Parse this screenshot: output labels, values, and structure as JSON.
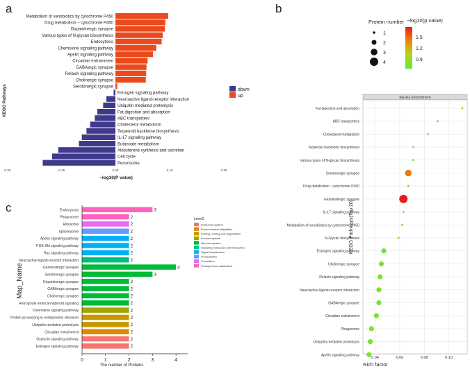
{
  "panel_labels": {
    "a": "a",
    "b": "b",
    "c": "c"
  },
  "colors": {
    "up": "#ec4a1c",
    "down": "#3f3a8c",
    "grid": "#e4e4e4",
    "strip": "#d9d9d9"
  },
  "chart_data": [
    {
      "id": "a",
      "type": "bar",
      "orientation": "horizontal",
      "xlabel": "−log10(P value)",
      "ylabel": "KEGG Pathways",
      "xlim": [
        -0.3,
        0.3
      ],
      "xticks": [
        "-0.30",
        "-0.15",
        "0.00",
        "0.15",
        "0.30"
      ],
      "legend": [
        {
          "name": "down",
          "color": "#3f3a8c"
        },
        {
          "name": "up",
          "color": "#ec4a1c"
        }
      ],
      "categories": [
        "Metabolism of xenobiotics by cytochrome P450",
        "Drug metabolism − cytochrome P450",
        "Dopaminergic synapse",
        "Various types of N-glycan biosynthesis",
        "Endocytosis",
        "Chemokine signaling pathway",
        "Apelin signaling pathway",
        "Circadian entrainment",
        "GABAergic synapse",
        "Relaxin signaling pathway",
        "Cholinergic synapse",
        "Serotonergic synapse",
        "Estrogen signaling pathway",
        "Neuroactive ligand-receptor interaction",
        "Ubiquitin mediated proteolysis",
        "Fat digestion and absorption",
        "ABC transporters",
        "Cholesterol metabolism",
        "Terpenoid backbone biosynthesis",
        "IL-17 signaling pathway",
        "Butanoate metabolism",
        "Aldosterone synthesis and secretion",
        "Cell cycle",
        "Peroxisome"
      ],
      "values": [
        0.146,
        0.138,
        0.137,
        0.131,
        0.128,
        0.113,
        0.104,
        0.089,
        0.086,
        0.085,
        0.084,
        0.005,
        -0.005,
        -0.025,
        -0.034,
        -0.05,
        -0.057,
        -0.07,
        -0.08,
        -0.093,
        -0.101,
        -0.158,
        -0.175,
        -0.201
      ],
      "group": [
        "up",
        "up",
        "up",
        "up",
        "up",
        "up",
        "up",
        "up",
        "up",
        "up",
        "up",
        "up",
        "down",
        "down",
        "down",
        "down",
        "down",
        "down",
        "down",
        "down",
        "down",
        "down",
        "down",
        "down"
      ]
    },
    {
      "id": "b",
      "type": "scatter",
      "title": "KEGG Enrichment",
      "xlabel": "Rich factor",
      "ylabel": "KEGG Pathways(Top 20)",
      "xlim": [
        0.03,
        0.115
      ],
      "xticks": [
        0.04,
        0.06,
        0.08,
        0.1
      ],
      "xtick_labels": [
        "0.04",
        "0.06",
        "0.08",
        "0.10"
      ],
      "size_legend_title": "Protein number",
      "size_legend": [
        "1",
        "2",
        "3",
        "4"
      ],
      "color_legend_title": "−log10(p.value)",
      "color_legend": [
        "1.5",
        "1.2",
        "0.9"
      ],
      "color_range": [
        0.75,
        1.75
      ],
      "categories": [
        "Fat digestion and absorption",
        "ABC transporters",
        "Cholesterol metabolism",
        "Terpenoid backbone biosynthesis",
        "Various types of N-glycan biosynthesis",
        "Serotonergic synapse",
        "Drug metabolism - cytochrome P450",
        "Glutamatergic synapse",
        "IL-17 signaling pathway",
        "Metabolism of xenobiotics by cytochrome P450",
        "N-Glycan biosynthesis",
        "Estrogen signaling pathway",
        "Cholinergic synapse",
        "Relaxin signaling pathway",
        "Neuroactive ligand-receptor interaction",
        "GABAergic synapse",
        "Circadian entrainment",
        "Phagosome",
        "Ubiquitin mediated proteolysis",
        "Apelin signaling pathway"
      ],
      "x": [
        0.111,
        0.091,
        0.083,
        0.071,
        0.071,
        0.067,
        0.067,
        0.063,
        0.063,
        0.062,
        0.059,
        0.047,
        0.045,
        0.044,
        0.043,
        0.043,
        0.041,
        0.037,
        0.036,
        0.035
      ],
      "size": [
        1,
        1,
        1,
        1,
        1,
        3,
        1,
        4,
        1,
        1,
        1,
        2,
        2,
        2,
        2,
        2,
        2,
        2,
        2,
        2
      ],
      "neglog10p": [
        0.8,
        0.8,
        0.8,
        0.8,
        0.8,
        1.45,
        0.8,
        1.75,
        0.8,
        0.8,
        0.8,
        0.85,
        0.85,
        0.85,
        0.85,
        0.85,
        0.85,
        0.85,
        0.85,
        0.85
      ]
    },
    {
      "id": "c",
      "type": "bar",
      "orientation": "horizontal",
      "xlabel": "The number of Proteins",
      "ylabel": "Map_Name",
      "xlim": [
        0,
        4.5
      ],
      "xticks": [
        0,
        1,
        2,
        3,
        4
      ],
      "legend_title": "Level2",
      "legend": [
        {
          "name": "Endocrine system",
          "color": "#f8766d"
        },
        {
          "name": "Environmental adaptation",
          "color": "#e58700"
        },
        {
          "name": "Folding, sorting and degradation",
          "color": "#c99800"
        },
        {
          "name": "Immune system",
          "color": "#a3a500"
        },
        {
          "name": "Nervous system",
          "color": "#00ba38"
        },
        {
          "name": "Signaling molecules and interaction",
          "color": "#00bf7d"
        },
        {
          "name": "Signal transduction",
          "color": "#00b0f6"
        },
        {
          "name": "Transcription",
          "color": "#619cff"
        },
        {
          "name": "Translation",
          "color": "#e76bf3"
        },
        {
          "name": "Transport and catabolism",
          "color": "#ff62bc"
        }
      ],
      "categories": [
        "Endocytosis",
        "Phagosome",
        "Ribosome",
        "Spliceosome",
        "Apelin signaling pathway",
        "PI3K-Akt signaling pathway",
        "Ras signaling pathway",
        "Neuroactive ligand-receptor interaction",
        "Glutamatergic synapse",
        "Serotonergic synapse",
        "Dopaminergic synapse",
        "GABAergic synapse",
        "Cholinergic synapse",
        "Retrograde endocannabinoid signaling",
        "Chemokine signaling pathway",
        "Protein processing in endoplasmic reticulum",
        "Ubiquitin mediated proteolysis",
        "Circadian entrainment",
        "Oxytocin signaling pathway",
        "Estrogen signaling pathway"
      ],
      "values": [
        3,
        2,
        2,
        2,
        2,
        2,
        2,
        2,
        4,
        3,
        2,
        2,
        2,
        2,
        2,
        2,
        2,
        2,
        2,
        2
      ],
      "value_labels": [
        "3",
        "2",
        "2",
        "2",
        "2",
        "2",
        "2",
        "2",
        "4",
        "3",
        "2",
        "2",
        "2",
        "2",
        "2",
        "2",
        "2",
        "2",
        "2",
        "2"
      ],
      "bar_colors": [
        "#ff62bc",
        "#ff62bc",
        "#e76bf3",
        "#619cff",
        "#00b0f6",
        "#00b0f6",
        "#00b0f6",
        "#00bf7d",
        "#00ba38",
        "#00ba38",
        "#00ba38",
        "#00ba38",
        "#00ba38",
        "#00ba38",
        "#a3a500",
        "#c99800",
        "#c99800",
        "#e58700",
        "#f8766d",
        "#f8766d"
      ]
    }
  ]
}
